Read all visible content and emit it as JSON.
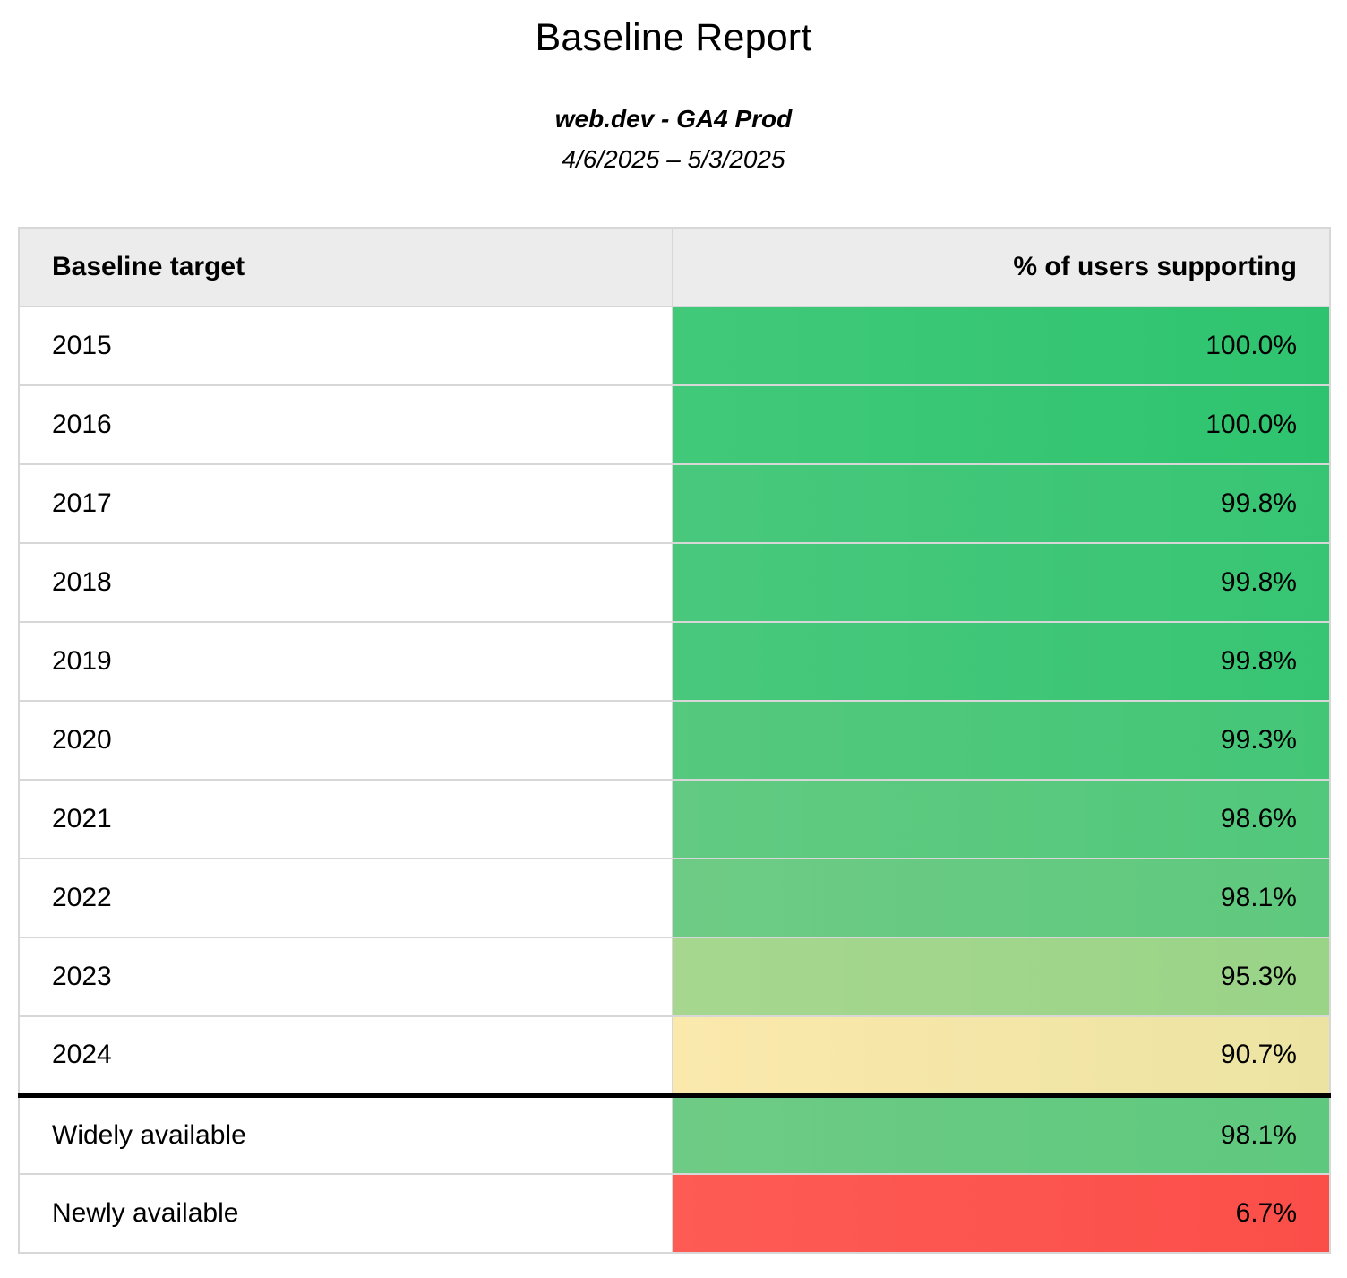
{
  "report": {
    "title": "Baseline Report",
    "subtitle": "web.dev - GA4 Prod",
    "date_range": "4/6/2025 – 5/3/2025"
  },
  "colors": {
    "header_bg": "#ececec",
    "border_light": "#d7d7d7",
    "border_dark": "#000000",
    "text": "#000000"
  },
  "table": {
    "columns": [
      "Baseline target",
      "% of users supporting"
    ],
    "rows": [
      {
        "label": "2015",
        "value": "100.0%",
        "bg_left": "#41c979",
        "bg_right": "#2ec46f",
        "section_end": false
      },
      {
        "label": "2016",
        "value": "100.0%",
        "bg_left": "#41c979",
        "bg_right": "#2ec46f",
        "section_end": false
      },
      {
        "label": "2017",
        "value": "99.8%",
        "bg_left": "#49c87c",
        "bg_right": "#37c573",
        "section_end": false
      },
      {
        "label": "2018",
        "value": "99.8%",
        "bg_left": "#49c87c",
        "bg_right": "#37c573",
        "section_end": false
      },
      {
        "label": "2019",
        "value": "99.8%",
        "bg_left": "#49c87c",
        "bg_right": "#37c573",
        "section_end": false
      },
      {
        "label": "2020",
        "value": "99.3%",
        "bg_left": "#55c97e",
        "bg_right": "#44c677",
        "section_end": false
      },
      {
        "label": "2021",
        "value": "98.6%",
        "bg_left": "#62ca82",
        "bg_right": "#51c87b",
        "section_end": false
      },
      {
        "label": "2022",
        "value": "98.1%",
        "bg_left": "#6ecb85",
        "bg_right": "#5ec97e",
        "section_end": false
      },
      {
        "label": "2023",
        "value": "95.3%",
        "bg_left": "#a7d78f",
        "bg_right": "#99d487",
        "section_end": false
      },
      {
        "label": "2024",
        "value": "90.7%",
        "bg_left": "#fbe9ac",
        "bg_right": "#ece3a2",
        "section_end": true
      },
      {
        "label": "Widely available",
        "value": "98.1%",
        "bg_left": "#6ecb85",
        "bg_right": "#5ec97e",
        "section_end": false
      },
      {
        "label": "Newly available",
        "value": "6.7%",
        "bg_left": "#fe5b55",
        "bg_right": "#fb4e49",
        "section_end": false
      }
    ]
  },
  "chart_data": {
    "type": "table",
    "title": "Baseline Report",
    "subtitle": "web.dev - GA4 Prod",
    "date_range": "4/6/2025 – 5/3/2025",
    "columns": [
      "Baseline target",
      "% of users supporting"
    ],
    "categories": [
      "2015",
      "2016",
      "2017",
      "2018",
      "2019",
      "2020",
      "2021",
      "2022",
      "2023",
      "2024",
      "Widely available",
      "Newly available"
    ],
    "values": [
      100.0,
      100.0,
      99.8,
      99.8,
      99.8,
      99.3,
      98.6,
      98.1,
      95.3,
      90.7,
      98.1,
      6.7
    ],
    "value_unit": "%",
    "color_scale": "green (high) to yellow (mid) to red (low)"
  }
}
